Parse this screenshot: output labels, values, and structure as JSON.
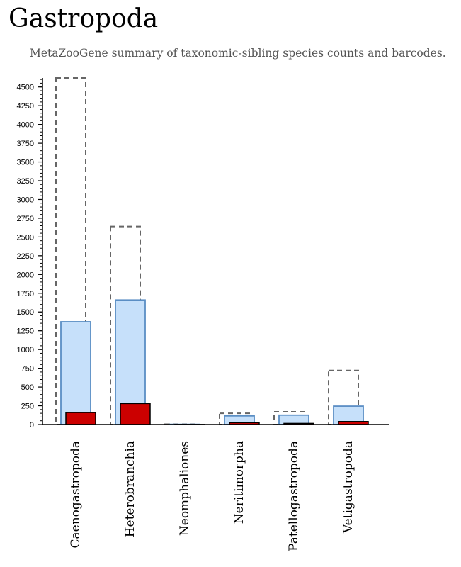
{
  "page": {
    "title": "Gastropoda",
    "subtitle": "MetaZooGene summary of taxonomic-sibling species counts and barcodes."
  },
  "colors": {
    "total_outline": "#666666",
    "species_fill": "#c6e0fa",
    "species_stroke": "#5a8ec4",
    "barcode_fill": "#cc0000",
    "barcode_stroke": "#000000"
  },
  "chart_data": {
    "type": "bar",
    "title": "",
    "xlabel": "",
    "ylabel": "",
    "ylim": [
      0,
      4620
    ],
    "yticks": [
      0,
      250,
      500,
      750,
      1000,
      1250,
      1500,
      1750,
      2000,
      2250,
      2500,
      2750,
      3000,
      3250,
      3500,
      3750,
      4000,
      4250,
      4500
    ],
    "grid": false,
    "categories": [
      "Caenogastropoda",
      "Heterobranchia",
      "Neomphaliones",
      "Neritimorpha",
      "Patellogastropoda",
      "Vetigastropoda"
    ],
    "series": [
      {
        "style": "dashed-outline",
        "values": [
          4620,
          2640,
          5,
          150,
          170,
          720
        ]
      },
      {
        "style": "light-blue-bar",
        "values": [
          1370,
          1660,
          3,
          115,
          125,
          245
        ]
      },
      {
        "style": "red-bar",
        "values": [
          160,
          280,
          1,
          25,
          15,
          40
        ]
      }
    ]
  }
}
